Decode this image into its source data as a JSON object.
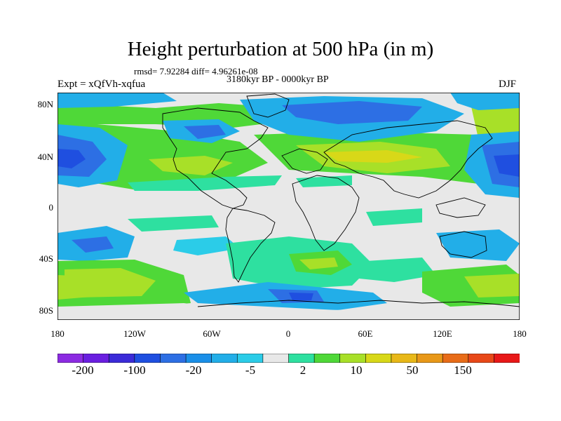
{
  "title": "Height perturbation at 500 hPa (in m)",
  "stats": "rmsd= 7.92284 diff= 4.96261e-08",
  "period": "3180kyr BP - 0000kyr BP",
  "experiment": "Expt = xQfVh-xqfua",
  "season": "DJF",
  "map": {
    "lat_ticks": [
      "80N",
      "40N",
      "0",
      "40S",
      "80S"
    ],
    "lon_ticks": [
      "180",
      "120W",
      "60W",
      "0",
      "60E",
      "120E",
      "180"
    ]
  },
  "colorbar": {
    "colors": [
      "#8c2be2",
      "#6a1fe0",
      "#3b2bd8",
      "#1f4fe0",
      "#2d6fe4",
      "#1a8fe8",
      "#22aee8",
      "#2bcce8",
      "#e8e8e8",
      "#2ee0a0",
      "#4fd838",
      "#a8e028",
      "#d8d818",
      "#e8b818",
      "#e89818",
      "#e86c18",
      "#e84818",
      "#e81818"
    ],
    "labels": [
      "-200",
      "-100",
      "-20",
      "-5",
      "2",
      "10",
      "50",
      "150"
    ]
  }
}
